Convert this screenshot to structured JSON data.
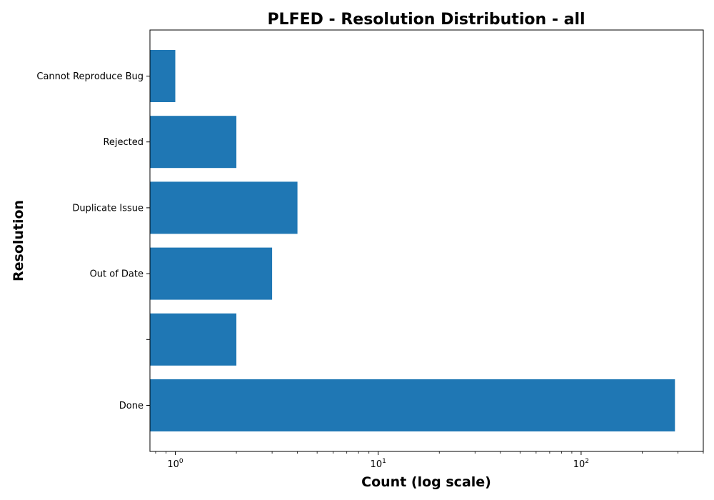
{
  "chart_data": {
    "type": "bar",
    "orientation": "horizontal",
    "title": "PLFED - Resolution Distribution - all",
    "xlabel": "Count (log scale)",
    "ylabel": "Resolution",
    "xscale": "log",
    "xlim": [
      0.75,
      400
    ],
    "grid": false,
    "bar_color": "#1f77b4",
    "categories": [
      "Done",
      "",
      "Out of Date",
      "Duplicate Issue",
      "Rejected",
      "Cannot Reproduce Bug"
    ],
    "values": [
      290,
      2,
      3,
      4,
      2,
      1
    ],
    "x_ticks": [
      {
        "value": 1,
        "base": "10",
        "exp": "0"
      },
      {
        "value": 10,
        "base": "10",
        "exp": "1"
      },
      {
        "value": 100,
        "base": "10",
        "exp": "2"
      }
    ]
  }
}
